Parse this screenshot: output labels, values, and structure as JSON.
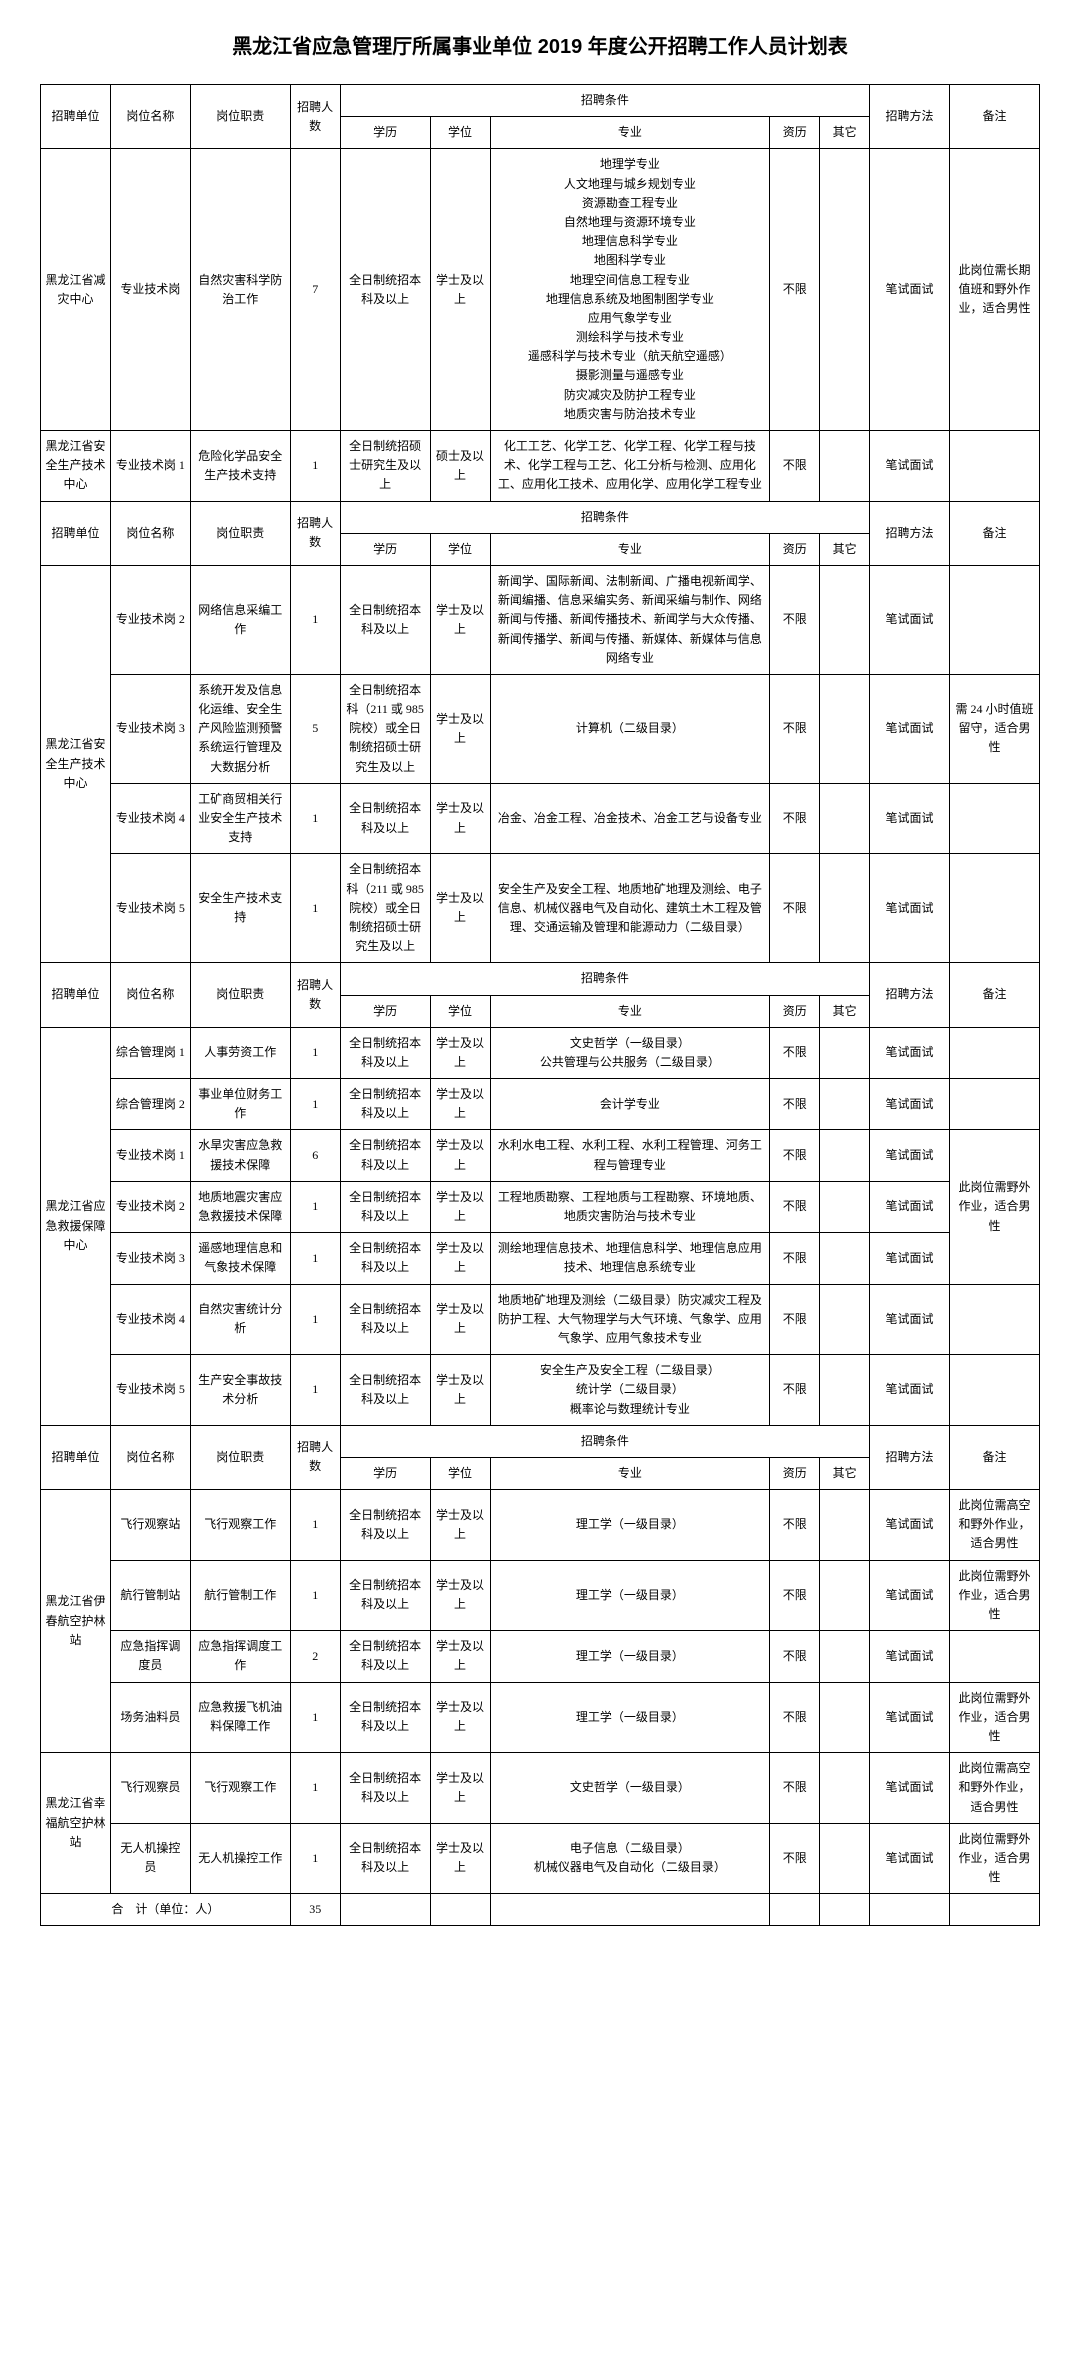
{
  "title": "黑龙江省应急管理厅所属事业单位 2019 年度公开招聘工作人员计划表",
  "header": {
    "unit": "招聘单位",
    "post": "岗位名称",
    "duty": "岗位职责",
    "num": "招聘人数",
    "cond": "招聘条件",
    "edu": "学历",
    "degree": "学位",
    "major": "专业",
    "qual": "资历",
    "other": "其它",
    "method": "招聘方法",
    "note": "备注"
  },
  "rows": [
    {
      "unit": "黑龙江省减灾中心",
      "post": "专业技术岗",
      "duty": "自然灾害科学防治工作",
      "num": "7",
      "edu": "全日制统招本科及以上",
      "degree": "学士及以上",
      "major": "地理学专业\n人文地理与城乡规划专业\n资源勘查工程专业\n自然地理与资源环境专业\n地理信息科学专业\n地图科学专业\n地理空间信息工程专业\n地理信息系统及地图制图学专业\n应用气象学专业\n测绘科学与技术专业\n遥感科学与技术专业（航天航空遥感）\n摄影测量与遥感专业\n防灾减灾及防护工程专业\n地质灾害与防治技术专业",
      "qual": "不限",
      "other": "",
      "method": "笔试面试",
      "note": "此岗位需长期值班和野外作业，适合男性"
    },
    {
      "unit": "黑龙江省安全生产技术中心",
      "post": "专业技术岗 1",
      "duty": "危险化学品安全生产技术支持",
      "num": "1",
      "edu": "全日制统招硕士研究生及以上",
      "degree": "硕士及以上",
      "major": "化工工艺、化学工艺、化学工程、化学工程与技术、化学工程与工艺、化工分析与检测、应用化工、应用化工技术、应用化学、应用化学工程专业",
      "qual": "不限",
      "other": "",
      "method": "笔试面试",
      "note": ""
    }
  ],
  "rows2": [
    {
      "post": "专业技术岗 2",
      "duty": "网络信息采编工作",
      "num": "1",
      "edu": "全日制统招本科及以上",
      "degree": "学士及以上",
      "major": "新闻学、国际新闻、法制新闻、广播电视新闻学、新闻编播、信息采编实务、新闻采编与制作、网络新闻与传播、新闻传播技术、新闻学与大众传播、新闻传播学、新闻与传播、新媒体、新媒体与信息网络专业",
      "qual": "不限",
      "other": "",
      "method": "笔试面试",
      "note": ""
    },
    {
      "post": "专业技术岗 3",
      "duty": "系统开发及信息化运维、安全生产风险监测预警系统运行管理及大数据分析",
      "num": "5",
      "edu": "全日制统招本科（211 或 985 院校）或全日制统招硕士研究生及以上",
      "degree": "学士及以上",
      "major": "计算机（二级目录）",
      "qual": "不限",
      "other": "",
      "method": "笔试面试",
      "note": "需 24 小时值班留守，适合男性"
    },
    {
      "post": "专业技术岗 4",
      "duty": "工矿商贸相关行业安全生产技术支持",
      "num": "1",
      "edu": "全日制统招本科及以上",
      "degree": "学士及以上",
      "major": "冶金、冶金工程、冶金技术、冶金工艺与设备专业",
      "qual": "不限",
      "other": "",
      "method": "笔试面试",
      "note": ""
    },
    {
      "post": "专业技术岗 5",
      "duty": "安全生产技术支持",
      "num": "1",
      "edu": "全日制统招本科（211 或 985 院校）或全日制统招硕士研究生及以上",
      "degree": "学士及以上",
      "major": "安全生产及安全工程、地质地矿地理及测绘、电子信息、机械仪器电气及自动化、建筑土木工程及管理、交通运输及管理和能源动力（二级目录）",
      "qual": "不限",
      "other": "",
      "method": "笔试面试",
      "note": ""
    }
  ],
  "unit2": "黑龙江省安全生产技术中心",
  "rows3": [
    {
      "post": "综合管理岗 1",
      "duty": "人事劳资工作",
      "num": "1",
      "edu": "全日制统招本科及以上",
      "degree": "学士及以上",
      "major": "文史哲学（一级目录）\n公共管理与公共服务（二级目录）",
      "qual": "不限",
      "other": "",
      "method": "笔试面试",
      "note": ""
    },
    {
      "post": "综合管理岗 2",
      "duty": "事业单位财务工作",
      "num": "1",
      "edu": "全日制统招本科及以上",
      "degree": "学士及以上",
      "major": "会计学专业",
      "qual": "不限",
      "other": "",
      "method": "笔试面试",
      "note": ""
    },
    {
      "post": "专业技术岗 1",
      "duty": "水旱灾害应急救援技术保障",
      "num": "6",
      "edu": "全日制统招本科及以上",
      "degree": "学士及以上",
      "major": "水利水电工程、水利工程、水利工程管理、河务工程与管理专业",
      "qual": "不限",
      "other": "",
      "method": "笔试面试",
      "noteGroup": "此岗位需野外作业，适合男性"
    },
    {
      "post": "专业技术岗 2",
      "duty": "地质地震灾害应急救援技术保障",
      "num": "1",
      "edu": "全日制统招本科及以上",
      "degree": "学士及以上",
      "major": "工程地质勘察、工程地质与工程勘察、环境地质、地质灾害防治与技术专业",
      "qual": "不限",
      "other": "",
      "method": "笔试面试"
    },
    {
      "post": "专业技术岗 3",
      "duty": "遥感地理信息和气象技术保障",
      "num": "1",
      "edu": "全日制统招本科及以上",
      "degree": "学士及以上",
      "major": "测绘地理信息技术、地理信息科学、地理信息应用技术、地理信息系统专业",
      "qual": "不限",
      "other": "",
      "method": "笔试面试"
    },
    {
      "post": "专业技术岗 4",
      "duty": "自然灾害统计分析",
      "num": "1",
      "edu": "全日制统招本科及以上",
      "degree": "学士及以上",
      "major": "地质地矿地理及测绘（二级目录）防灾减灾工程及防护工程、大气物理学与大气环境、气象学、应用气象学、应用气象技术专业",
      "qual": "不限",
      "other": "",
      "method": "笔试面试",
      "note": ""
    },
    {
      "post": "专业技术岗 5",
      "duty": "生产安全事故技术分析",
      "num": "1",
      "edu": "全日制统招本科及以上",
      "degree": "学士及以上",
      "major": "安全生产及安全工程（二级目录）\n统计学（二级目录）\n概率论与数理统计专业",
      "qual": "不限",
      "other": "",
      "method": "笔试面试",
      "note": ""
    }
  ],
  "unit3": "黑龙江省应急救援保障中心",
  "rows4": [
    {
      "post": "飞行观察站",
      "duty": "飞行观察工作",
      "num": "1",
      "edu": "全日制统招本科及以上",
      "degree": "学士及以上",
      "major": "理工学（一级目录）",
      "qual": "不限",
      "other": "",
      "method": "笔试面试",
      "note": "此岗位需高空和野外作业，适合男性"
    },
    {
      "post": "航行管制站",
      "duty": "航行管制工作",
      "num": "1",
      "edu": "全日制统招本科及以上",
      "degree": "学士及以上",
      "major": "理工学（一级目录）",
      "qual": "不限",
      "other": "",
      "method": "笔试面试",
      "note": "此岗位需野外作业，适合男性"
    },
    {
      "post": "应急指挥调度员",
      "duty": "应急指挥调度工作",
      "num": "2",
      "edu": "全日制统招本科及以上",
      "degree": "学士及以上",
      "major": "理工学（一级目录）",
      "qual": "不限",
      "other": "",
      "method": "笔试面试",
      "note": ""
    },
    {
      "post": "场务油料员",
      "duty": "应急救援飞机油料保障工作",
      "num": "1",
      "edu": "全日制统招本科及以上",
      "degree": "学士及以上",
      "major": "理工学（一级目录）",
      "qual": "不限",
      "other": "",
      "method": "笔试面试",
      "note": "此岗位需野外作业，适合男性"
    }
  ],
  "unit4": "黑龙江省伊春航空护林站",
  "rows5": [
    {
      "post": "飞行观察员",
      "duty": "飞行观察工作",
      "num": "1",
      "edu": "全日制统招本科及以上",
      "degree": "学士及以上",
      "major": "文史哲学（一级目录）",
      "qual": "不限",
      "other": "",
      "method": "笔试面试",
      "note": "此岗位需高空和野外作业，适合男性"
    },
    {
      "post": "无人机操控员",
      "duty": "无人机操控工作",
      "num": "1",
      "edu": "全日制统招本科及以上",
      "degree": "学士及以上",
      "major": "电子信息（二级目录）\n机械仪器电气及自动化（二级目录）",
      "qual": "不限",
      "other": "",
      "method": "笔试面试",
      "note": "此岗位需野外作业，适合男性"
    }
  ],
  "unit5": "黑龙江省幸福航空护林站",
  "total_label": "合　计（单位：人）",
  "total_num": "35"
}
